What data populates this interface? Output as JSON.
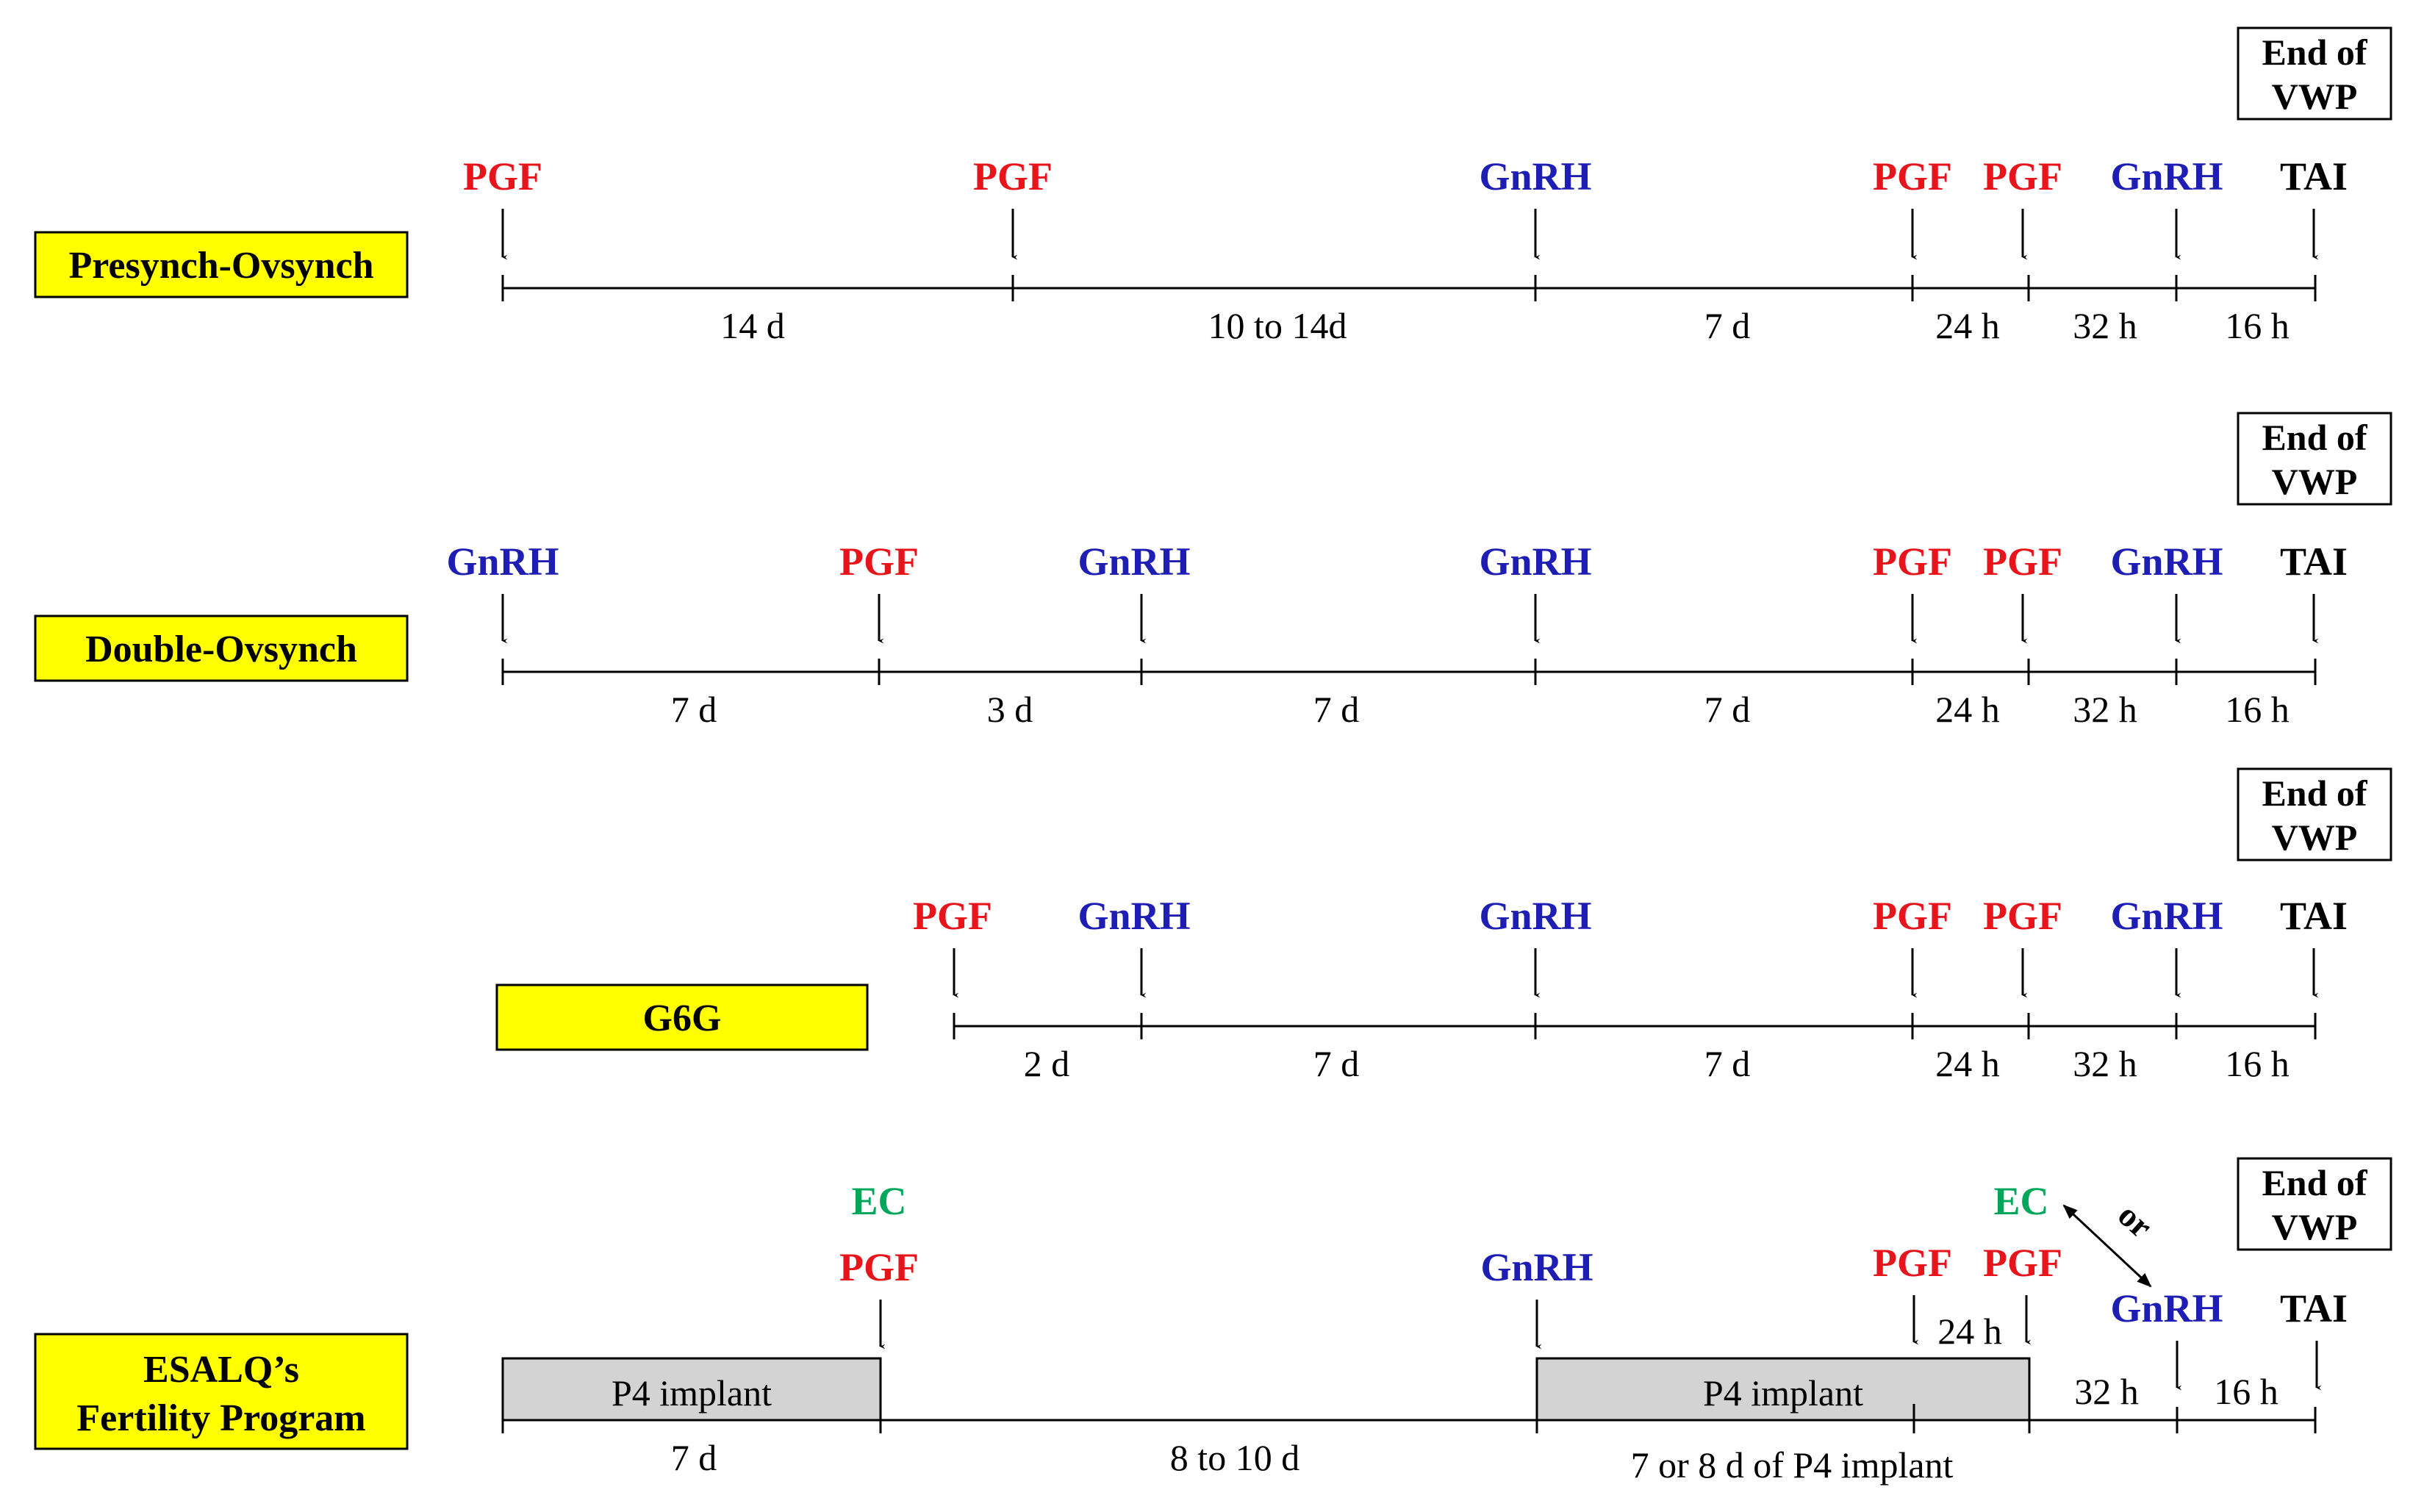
{
  "colors": {
    "PGF": "#e8141c",
    "GnRH": "#1e1eb4",
    "TAI": "#000000",
    "EC": "#00a65a",
    "label_fill": "#ffff00",
    "implant_fill": "#d3d3d3"
  },
  "end_of_vwp": {
    "line1": "End of",
    "line2": "VWP"
  },
  "programs": [
    {
      "name": "Presynch-Ovsynch",
      "events": [
        "PGF",
        "PGF",
        "GnRH",
        "PGF",
        "PGF",
        "GnRH",
        "TAI"
      ],
      "durations": [
        "14 d",
        "10 to 14d",
        "7 d",
        "24 h",
        "32 h",
        "16 h"
      ]
    },
    {
      "name": "Double-Ovsynch",
      "events": [
        "GnRH",
        "PGF",
        "GnRH",
        "GnRH",
        "PGF",
        "PGF",
        "GnRH",
        "TAI"
      ],
      "durations": [
        "7 d",
        "3 d",
        "7 d",
        "7 d",
        "24 h",
        "32 h",
        "16 h"
      ]
    },
    {
      "name": "G6G",
      "events": [
        "PGF",
        "GnRH",
        "GnRH",
        "PGF",
        "PGF",
        "GnRH",
        "TAI"
      ],
      "durations": [
        "2 d",
        "7 d",
        "7 d",
        "24 h",
        "32 h",
        "16 h"
      ]
    },
    {
      "name_line1": "ESALQ’s",
      "name_line2": "Fertility Program",
      "ec1": "EC",
      "pgf1": "PGF",
      "gnrh1": "GnRH",
      "pgf2": "PGF",
      "pgf3": "PGF",
      "ec2": "EC",
      "or": "or",
      "gnrh2": "GnRH",
      "tai": "TAI",
      "implant1": "P4 implant",
      "implant2": "P4 implant",
      "durations": {
        "d1": "7 d",
        "d2": "8 to 10 d",
        "d3": "7 or 8 d of P4 implant",
        "h24": "24 h",
        "h32": "32 h",
        "h16": "16 h"
      }
    }
  ]
}
